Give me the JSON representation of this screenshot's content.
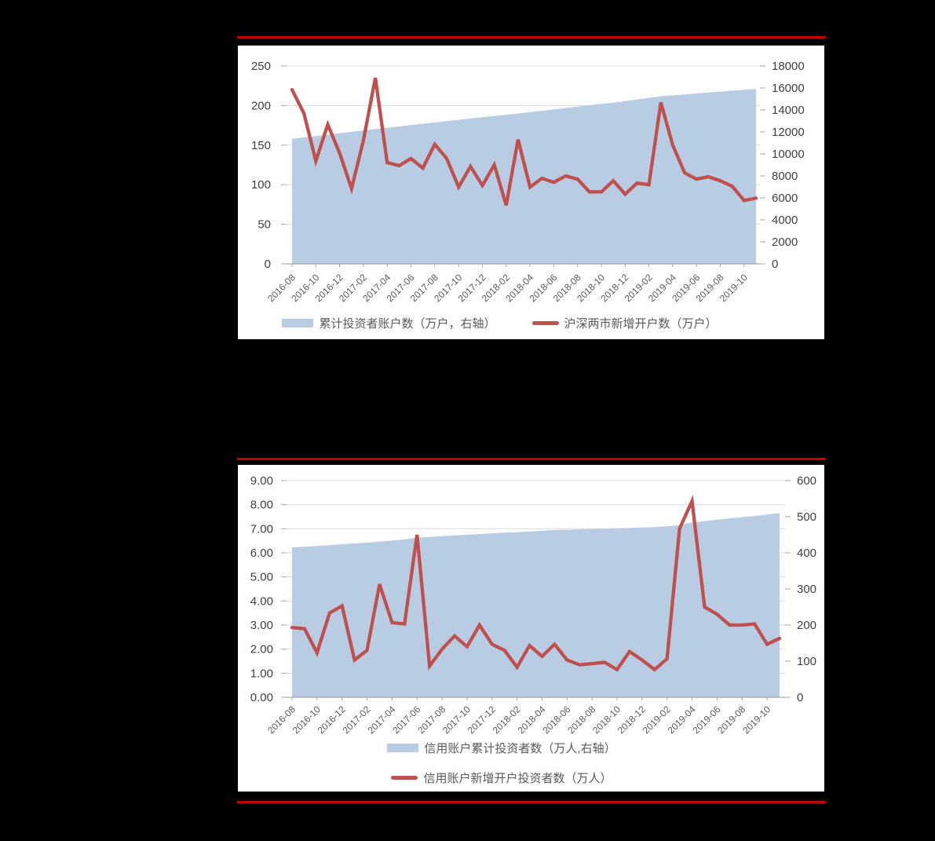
{
  "colors": {
    "separator_red": "#c40000",
    "line_red": "#c0504d",
    "area_blue": "#b8cce4",
    "gridline": "#d9d9d9",
    "axis": "#a6a6a6",
    "axis_label_text": "#404040",
    "tick_label_text": "#595959"
  },
  "chart_data": [
    {
      "type": "area+line",
      "title": "",
      "grid": true,
      "legend_position": "bottom",
      "categories": [
        "2016-08",
        "2016-09",
        "2016-10",
        "2016-11",
        "2016-12",
        "2017-01",
        "2017-02",
        "2017-03",
        "2017-04",
        "2017-05",
        "2017-06",
        "2017-07",
        "2017-08",
        "2017-09",
        "2017-10",
        "2017-11",
        "2017-12",
        "2018-01",
        "2018-02",
        "2018-03",
        "2018-04",
        "2018-05",
        "2018-06",
        "2018-07",
        "2018-08",
        "2018-09",
        "2018-10",
        "2018-11",
        "2018-12",
        "2019-01",
        "2019-02",
        "2019-03",
        "2019-04",
        "2019-05",
        "2019-06",
        "2019-07",
        "2019-08",
        "2019-09",
        "2019-10",
        "2019-11"
      ],
      "x_tick_labels": [
        "2016-08",
        "2016-10",
        "2016-12",
        "2017-02",
        "2017-04",
        "2017-06",
        "2017-08",
        "2017-10",
        "2017-12",
        "2018-02",
        "2018-04",
        "2018-06",
        "2018-08",
        "2018-10",
        "2018-12",
        "2019-02",
        "2019-04",
        "2019-06",
        "2019-08",
        "2019-10"
      ],
      "left_axis": {
        "min": 0,
        "max": 250,
        "step": 50,
        "labels": [
          "250",
          "200",
          "150",
          "100",
          "50",
          "0"
        ]
      },
      "right_axis": {
        "min": 0,
        "max": 18000,
        "step": 2000,
        "labels": [
          "18000",
          "16000",
          "14000",
          "12000",
          "10000",
          "8000",
          "6000",
          "4000",
          "2000",
          "0"
        ]
      },
      "series": [
        {
          "name": "累计投资者账户数（万户，右轴）",
          "type": "area",
          "axis": "right",
          "color": "#b8cce4",
          "values": [
            11380,
            11510,
            11630,
            11760,
            11890,
            12010,
            12140,
            12260,
            12380,
            12500,
            12620,
            12740,
            12860,
            12980,
            13100,
            13220,
            13340,
            13460,
            13560,
            13680,
            13800,
            13920,
            14040,
            14170,
            14300,
            14430,
            14560,
            14650,
            14800,
            14950,
            15100,
            15240,
            15330,
            15410,
            15500,
            15580,
            15670,
            15750,
            15830,
            15910
          ]
        },
        {
          "name": "沪深两市新增开户数（万户）",
          "type": "line",
          "axis": "left",
          "color": "#c0504d",
          "values": [
            220,
            190,
            130,
            176,
            140,
            95,
            156,
            235,
            128,
            124,
            133,
            121,
            151,
            133,
            97,
            123,
            99,
            125,
            74,
            157,
            97,
            108,
            103,
            111,
            107,
            91,
            91,
            105,
            88,
            102,
            100,
            204,
            150,
            115,
            107,
            110,
            105,
            98,
            80,
            83
          ]
        }
      ]
    },
    {
      "type": "area+line",
      "title": "",
      "grid": true,
      "legend_position": "bottom",
      "categories": [
        "2016-08",
        "2016-09",
        "2016-10",
        "2016-11",
        "2016-12",
        "2017-01",
        "2017-02",
        "2017-03",
        "2017-04",
        "2017-05",
        "2017-06",
        "2017-07",
        "2017-08",
        "2017-09",
        "2017-10",
        "2017-11",
        "2017-12",
        "2018-01",
        "2018-02",
        "2018-03",
        "2018-04",
        "2018-05",
        "2018-06",
        "2018-07",
        "2018-08",
        "2018-09",
        "2018-10",
        "2018-11",
        "2018-12",
        "2019-01",
        "2019-02",
        "2019-03",
        "2019-04",
        "2019-05",
        "2019-06",
        "2019-07",
        "2019-08",
        "2019-09",
        "2019-10",
        "2019-11"
      ],
      "x_tick_labels": [
        "2016-08",
        "2016-10",
        "2016-12",
        "2017-02",
        "2017-04",
        "2017-06",
        "2017-08",
        "2017-10",
        "2017-12",
        "2018-02",
        "2018-04",
        "2018-06",
        "2018-08",
        "2018-10",
        "2018-12",
        "2019-02",
        "2019-04",
        "2019-06",
        "2019-08",
        "2019-10"
      ],
      "left_axis": {
        "min": 0,
        "max": 9,
        "step": 1,
        "labels": [
          "9.00",
          "8.00",
          "7.00",
          "6.00",
          "5.00",
          "4.00",
          "3.00",
          "2.00",
          "1.00",
          "0.00"
        ]
      },
      "right_axis": {
        "min": 0,
        "max": 600,
        "step": 100,
        "labels": [
          "600",
          "500",
          "400",
          "300",
          "200",
          "100",
          "0"
        ]
      },
      "series": [
        {
          "name": "信用账户累计投资者数（万人,右轴）",
          "type": "area",
          "axis": "right",
          "color": "#b8cce4",
          "values": [
            415,
            417,
            419,
            421,
            424,
            426,
            428,
            431,
            434,
            437,
            442,
            444,
            446,
            448,
            450,
            452,
            454,
            456,
            457,
            459,
            461,
            463,
            464,
            465,
            466,
            467,
            468,
            469,
            470,
            471,
            473,
            477,
            484,
            488,
            492,
            495,
            499,
            502,
            506,
            510
          ]
        },
        {
          "name": "信用账户新增开户投资者数（万人）",
          "type": "line",
          "axis": "left",
          "color": "#c0504d",
          "values": [
            2.9,
            2.85,
            1.85,
            3.5,
            3.8,
            1.55,
            1.95,
            4.7,
            3.1,
            3.05,
            6.75,
            1.3,
            2.0,
            2.55,
            2.1,
            3.0,
            2.2,
            1.95,
            1.25,
            2.15,
            1.7,
            2.2,
            1.55,
            1.35,
            1.4,
            1.45,
            1.15,
            1.9,
            1.55,
            1.15,
            1.6,
            7.0,
            8.15,
            3.75,
            3.45,
            3.0,
            3.0,
            3.05,
            2.2,
            2.45
          ]
        }
      ]
    }
  ]
}
